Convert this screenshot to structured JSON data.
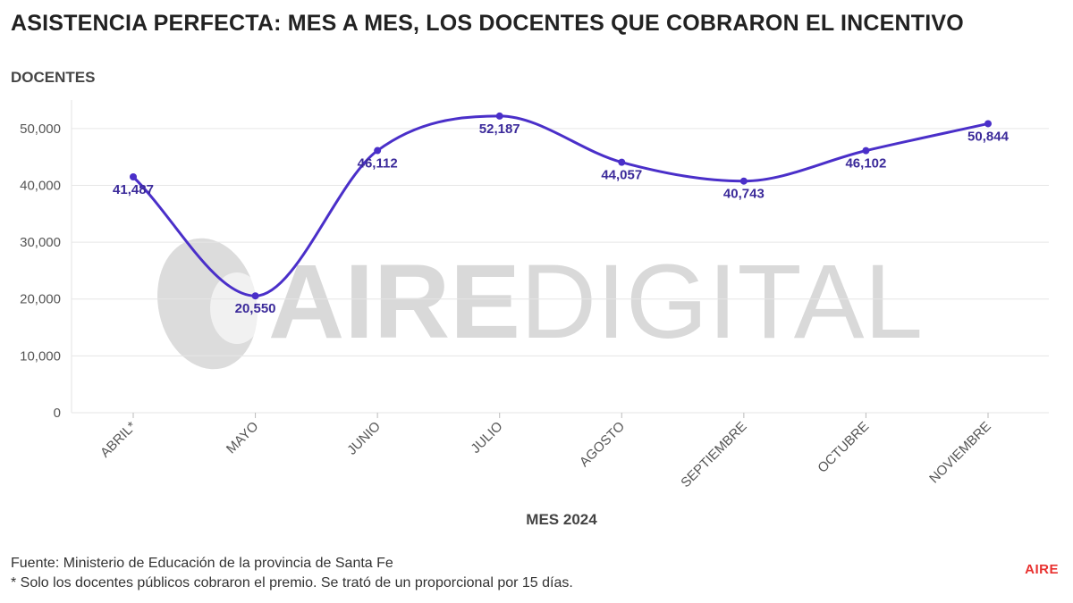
{
  "header": {
    "title": "ASISTENCIA PERFECTA: MES A MES, LOS DOCENTES QUE COBRARON EL INCENTIVO"
  },
  "chart_data": {
    "type": "line",
    "title": "ASISTENCIA PERFECTA: MES A MES, LOS DOCENTES QUE COBRARON EL INCENTIVO",
    "ylabel": "DOCENTES",
    "xlabel": "MES 2024",
    "categories": [
      "ABRIL*",
      "MAYO",
      "JUNIO",
      "JULIO",
      "AGOSTO",
      "SEPTIEMBRE",
      "OCTUBRE",
      "NOVIEMBRE"
    ],
    "series": [
      {
        "values": [
          41487,
          20550,
          46112,
          52187,
          44057,
          40743,
          46102,
          50844
        ]
      }
    ],
    "data_labels": [
      "41,487",
      "20,550",
      "46,112",
      "52,187",
      "44,057",
      "40,743",
      "46,102",
      "50,844"
    ],
    "ylim": [
      0,
      55000
    ],
    "yticks": [
      0,
      10000,
      20000,
      30000,
      40000,
      50000
    ],
    "ytick_labels": [
      "0",
      "10,000",
      "20,000",
      "30,000",
      "40,000",
      "50,000"
    ],
    "grid": true,
    "line_style": "smooth",
    "line_color": "#4a2fc9",
    "legend": "none"
  },
  "watermark": {
    "text_bold": "AIRE",
    "text_light": "DIGITAL"
  },
  "footer": {
    "source": "Fuente: Ministerio de Educación de la provincia de Santa Fe",
    "note": "* Solo los docentes públicos cobraron el premio. Se trató de un proporcional por 15 días.",
    "logo": "AIRE"
  }
}
